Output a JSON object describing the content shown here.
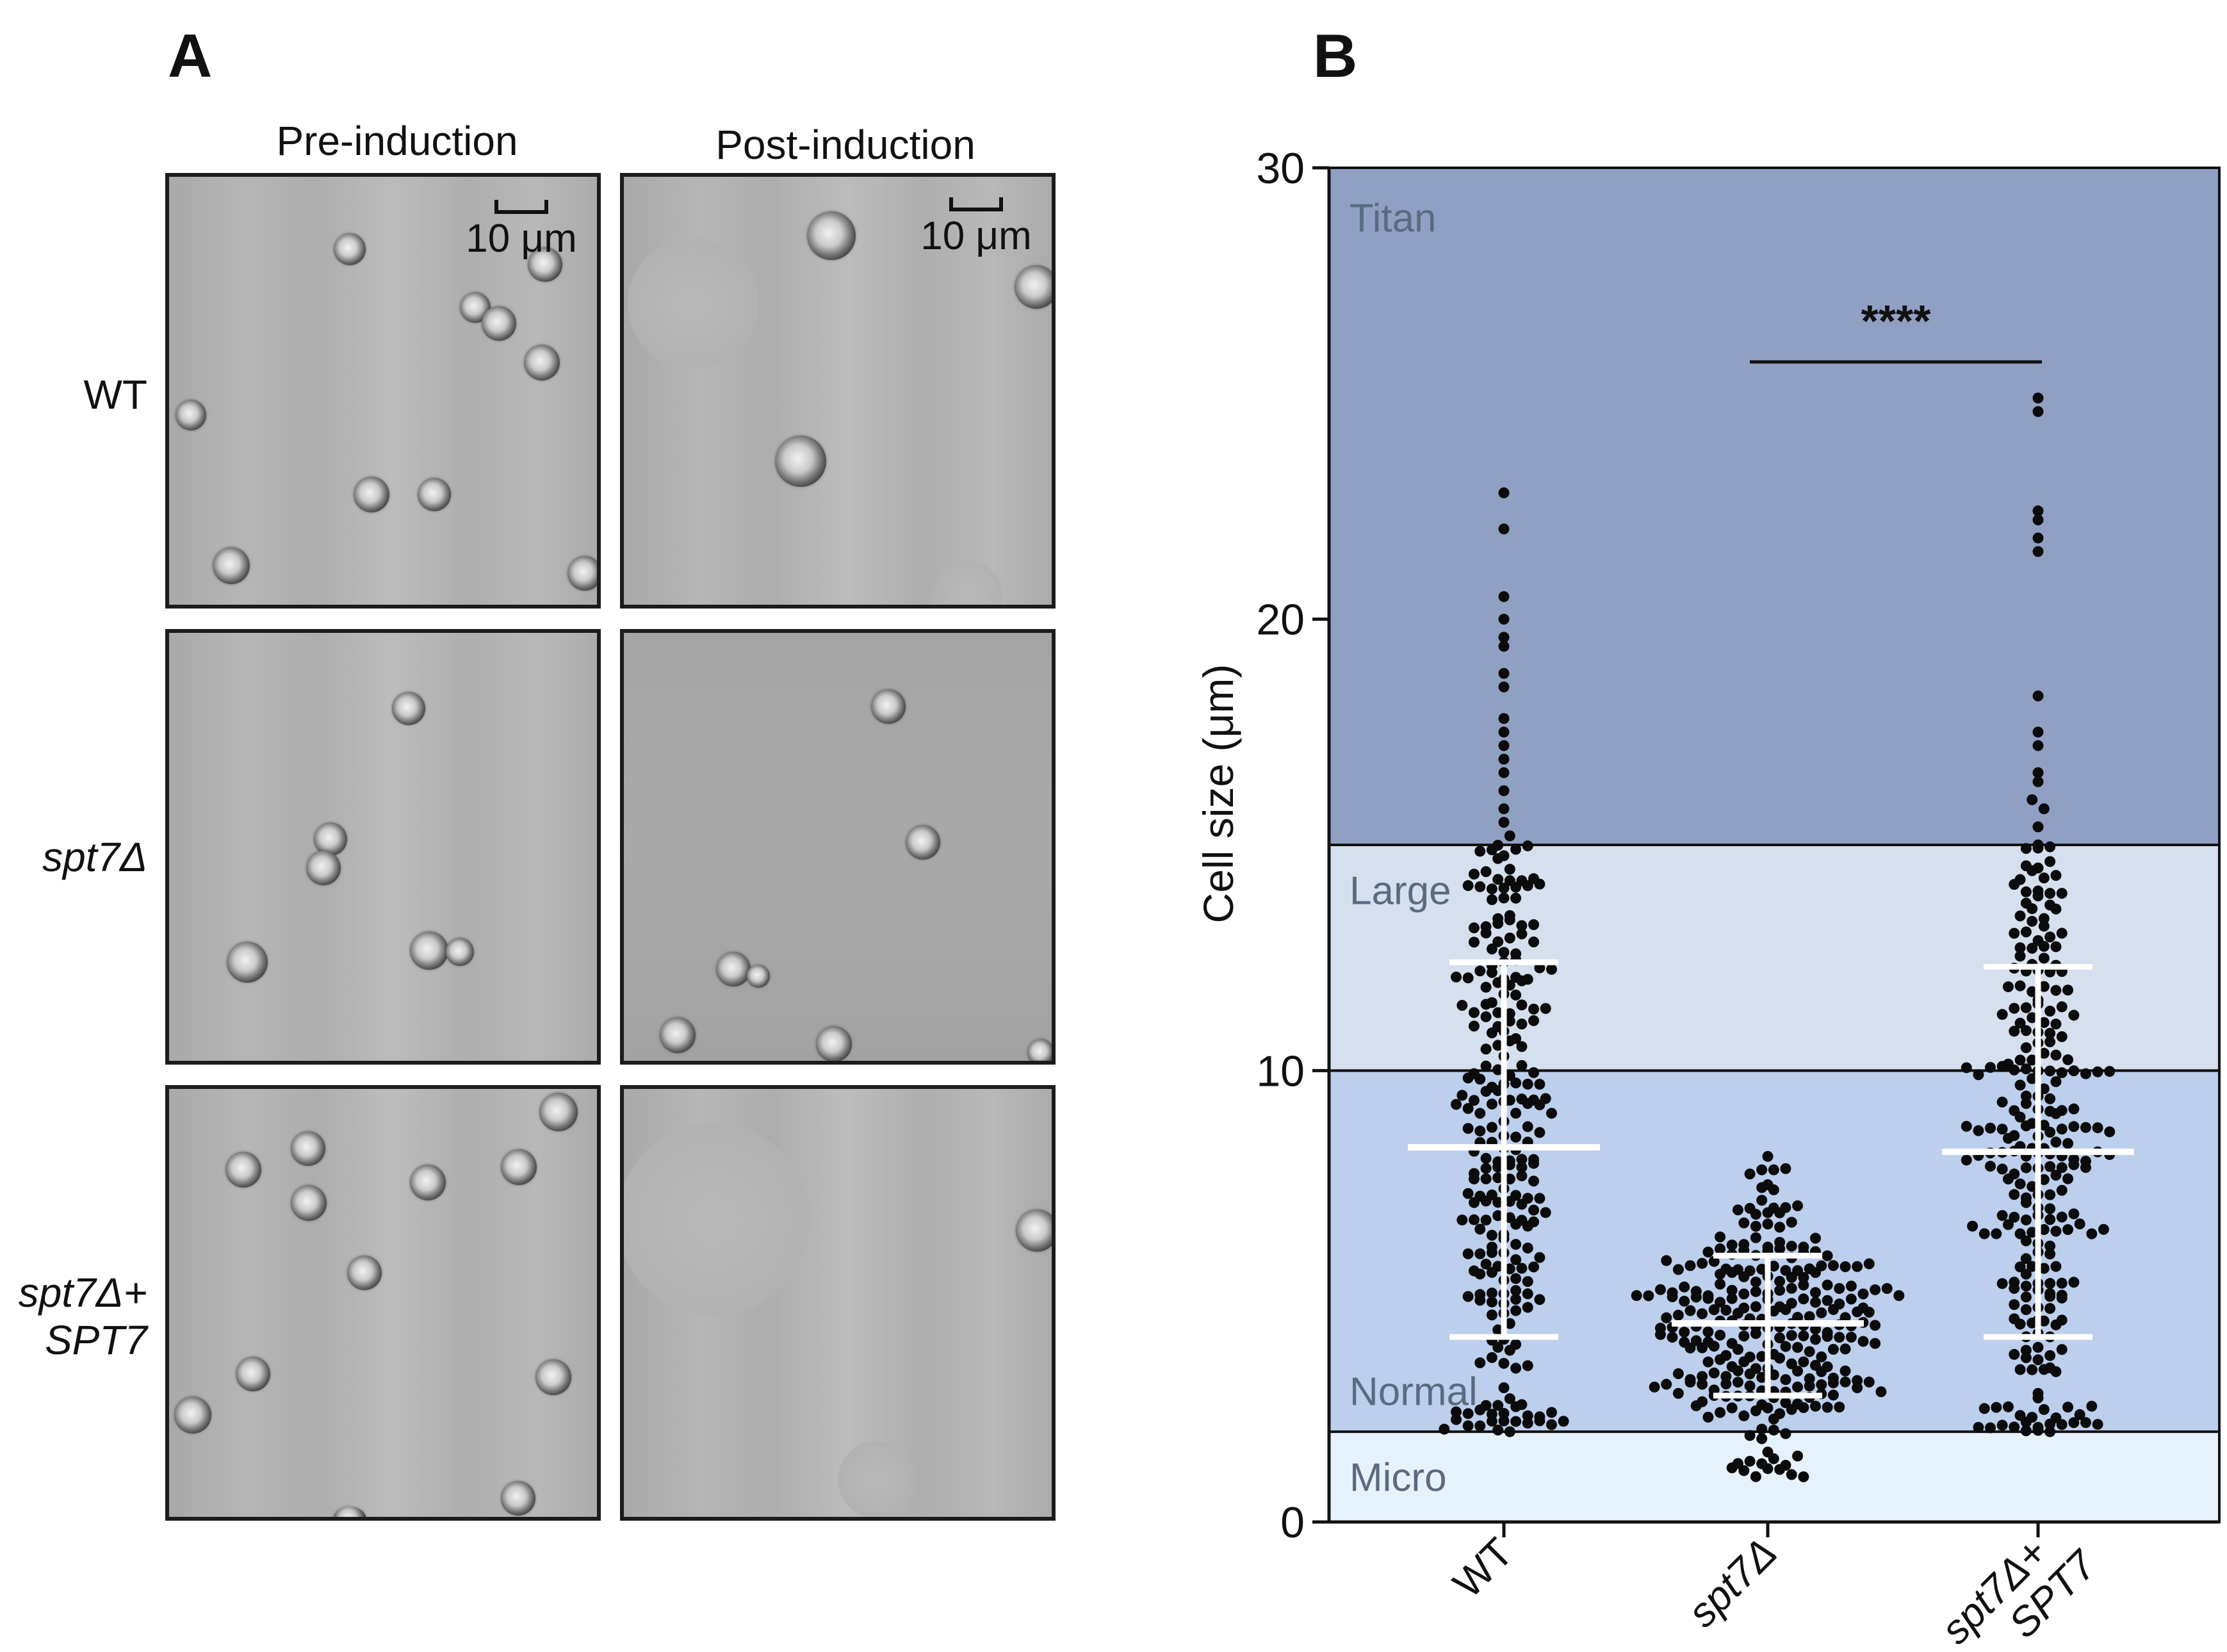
{
  "panel_a": {
    "letter": "A",
    "columns": [
      "Pre-induction",
      "Post-induction"
    ],
    "rows": [
      {
        "label": "WT",
        "italic": false
      },
      {
        "label": "spt7Δ",
        "italic": true
      },
      {
        "label_line1": "spt7Δ+",
        "label_line2": "SPT7",
        "italic": true
      }
    ],
    "scale_bar": "10 μm"
  },
  "panel_b": {
    "letter": "B"
  },
  "chart_data": {
    "type": "scatter",
    "ylabel": "Cell size (μm)",
    "xlabel": "",
    "ylim": [
      0,
      30
    ],
    "yticks": [
      0,
      10,
      20,
      30
    ],
    "categories": [
      "WT",
      "spt7Δ",
      "spt7Δ+ SPT7"
    ],
    "category_labels": [
      [
        "WT"
      ],
      [
        "spt7Δ"
      ],
      [
        "spt7Δ+",
        "SPT7"
      ]
    ],
    "size_zones": [
      {
        "name": "Micro",
        "from": 0,
        "to": 2,
        "color": "#e6f2fb"
      },
      {
        "name": "Normal",
        "from": 2,
        "to": 10,
        "color": "#bccfec"
      },
      {
        "name": "Large",
        "from": 10,
        "to": 15,
        "color": "#d5dfee"
      },
      {
        "name": "Titan",
        "from": 15,
        "to": 30,
        "color": "#8fa0c3"
      }
    ],
    "significance": {
      "label": "****",
      "from_category": 1,
      "to_category": 2,
      "y": 25.7
    },
    "series": [
      {
        "category": "WT",
        "mean": 8.3,
        "sd_low": 4.1,
        "sd_high": 12.4,
        "n": 260,
        "min": 2.0,
        "max": 22.8,
        "outliers_high": [
          22.8,
          22.0,
          20.5,
          20.0,
          19.6,
          19.4,
          18.8,
          18.5,
          17.8,
          17.5,
          17.2,
          16.9,
          16.6,
          16.2,
          15.8,
          15.5,
          15.2
        ]
      },
      {
        "category": "spt7Δ",
        "mean": 4.4,
        "sd_low": 2.8,
        "sd_high": 5.9,
        "n": 270,
        "min": 1.0,
        "max": 8.2,
        "outliers_high": []
      },
      {
        "category": "spt7Δ+ SPT7",
        "mean": 8.2,
        "sd_low": 4.1,
        "sd_high": 12.3,
        "n": 270,
        "min": 2.0,
        "max": 24.9,
        "outliers_high": [
          24.9,
          24.6,
          22.4,
          22.2,
          21.8,
          21.5,
          18.3,
          17.5,
          17.2,
          16.6,
          16.4,
          16.0,
          15.8,
          15.4,
          15.0
        ]
      }
    ]
  }
}
